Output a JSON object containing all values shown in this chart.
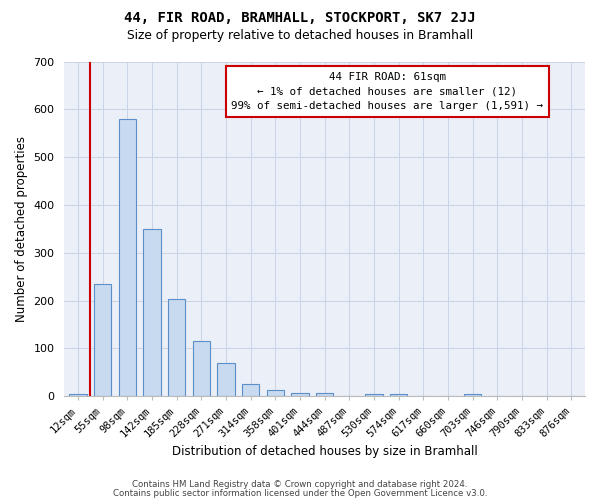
{
  "title": "44, FIR ROAD, BRAMHALL, STOCKPORT, SK7 2JJ",
  "subtitle": "Size of property relative to detached houses in Bramhall",
  "xlabel": "Distribution of detached houses by size in Bramhall",
  "ylabel": "Number of detached properties",
  "bar_color": "#c8daf0",
  "bar_edge_color": "#5b8fc9",
  "grid_color": "#c8d4e6",
  "bg_color": "#eaeff8",
  "categories": [
    "12sqm",
    "55sqm",
    "98sqm",
    "142sqm",
    "185sqm",
    "228sqm",
    "271sqm",
    "314sqm",
    "358sqm",
    "401sqm",
    "444sqm",
    "487sqm",
    "530sqm",
    "574sqm",
    "617sqm",
    "660sqm",
    "703sqm",
    "746sqm",
    "790sqm",
    "833sqm",
    "876sqm"
  ],
  "values": [
    5,
    235,
    580,
    350,
    203,
    115,
    70,
    25,
    13,
    8,
    7,
    0,
    5,
    4,
    0,
    0,
    4,
    0,
    0,
    0,
    0
  ],
  "annotation_title": "44 FIR ROAD: 61sqm",
  "annotation_line1": "← 1% of detached houses are smaller (12)",
  "annotation_line2": "99% of semi-detached houses are larger (1,591) →",
  "vline_color": "#cc0000",
  "annotation_box_bg": "#ffffff",
  "annotation_box_edge": "#cc0000",
  "footer_line1": "Contains HM Land Registry data © Crown copyright and database right 2024.",
  "footer_line2": "Contains public sector information licensed under the Open Government Licence v3.0.",
  "ylim": [
    0,
    700
  ],
  "yticks": [
    0,
    100,
    200,
    300,
    400,
    500,
    600,
    700
  ],
  "figsize": [
    6.0,
    5.0
  ],
  "dpi": 100
}
